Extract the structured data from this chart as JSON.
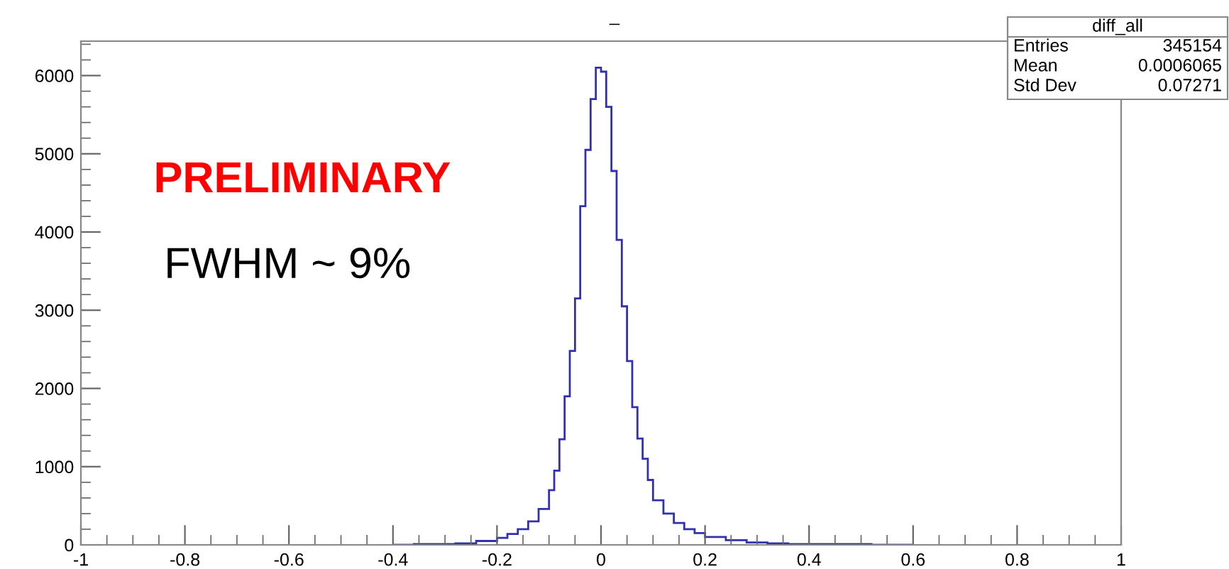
{
  "chart_data": {
    "type": "histogram",
    "title": "_",
    "bins": [
      -0.4,
      -0.36,
      -0.32,
      -0.28,
      -0.24,
      -0.2,
      -0.18,
      -0.16,
      -0.14,
      -0.12,
      -0.1,
      -0.09,
      -0.08,
      -0.07,
      -0.06,
      -0.05,
      -0.04,
      -0.03,
      -0.02,
      -0.01,
      0.0,
      0.01,
      0.02,
      0.03,
      0.04,
      0.05,
      0.06,
      0.07,
      0.08,
      0.09,
      0.1,
      0.12,
      0.14,
      0.16,
      0.18,
      0.2,
      0.24,
      0.28,
      0.32,
      0.36,
      0.4,
      0.44,
      0.48,
      0.52,
      0.56,
      0.6
    ],
    "values": [
      0,
      10,
      10,
      20,
      50,
      90,
      140,
      200,
      300,
      460,
      700,
      950,
      1350,
      1900,
      2480,
      3150,
      4330,
      5050,
      5700,
      6100,
      6050,
      5600,
      4780,
      3900,
      3050,
      2350,
      1760,
      1360,
      1100,
      830,
      570,
      400,
      280,
      200,
      150,
      100,
      60,
      30,
      20,
      10,
      10,
      10,
      10,
      0,
      0
    ],
    "color": "#3030b0",
    "xlim": [
      -1,
      1
    ],
    "ylim": [
      0,
      6440
    ],
    "xticks": [
      -1,
      -0.8,
      -0.6,
      -0.4,
      -0.2,
      0,
      0.2,
      0.4,
      0.6,
      0.8,
      1
    ],
    "yticks": [
      0,
      1000,
      2000,
      3000,
      4000,
      5000,
      6000
    ],
    "grid": false,
    "annotations": [
      "PRELIMINARY",
      "FWHM ~ 9%",
      "diff_all",
      "Entries",
      "345154",
      "Mean",
      "0.0006065",
      "Std Dev",
      "0.07271"
    ]
  }
}
